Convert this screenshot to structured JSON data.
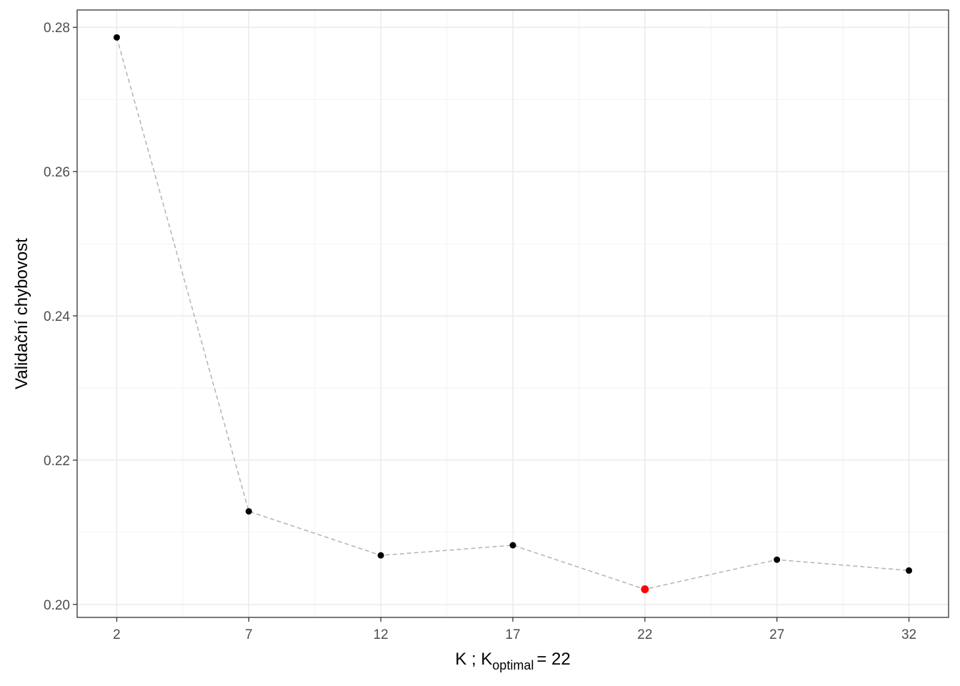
{
  "chart_data": {
    "type": "line",
    "xlabel": "K ;   K",
    "xlabel_subscript": "optimal",
    "xlabel_suffix": "= 22",
    "ylabel": "Validační chybovost",
    "x": [
      2,
      7,
      12,
      17,
      22,
      27,
      32
    ],
    "series": [
      {
        "values": [
          0.2786,
          0.2129,
          0.2068,
          0.2082,
          0.2021,
          0.2062,
          0.2047
        ],
        "color": "#000000"
      }
    ],
    "line_color": "#b3b3b3",
    "line_style": "dashed",
    "highlight_index": 4,
    "highlight_color": "#ff0000",
    "xlim": [
      0.5,
      33.5
    ],
    "ylim": [
      0.1982,
      0.2824
    ],
    "xticks": [
      2,
      7,
      12,
      17,
      22,
      27,
      32
    ],
    "yticks": [
      {
        "value": 0.2,
        "label": "0.20"
      },
      0.22,
      0.24,
      0.26,
      0.28
    ],
    "grid": true,
    "minor_grid": true
  }
}
